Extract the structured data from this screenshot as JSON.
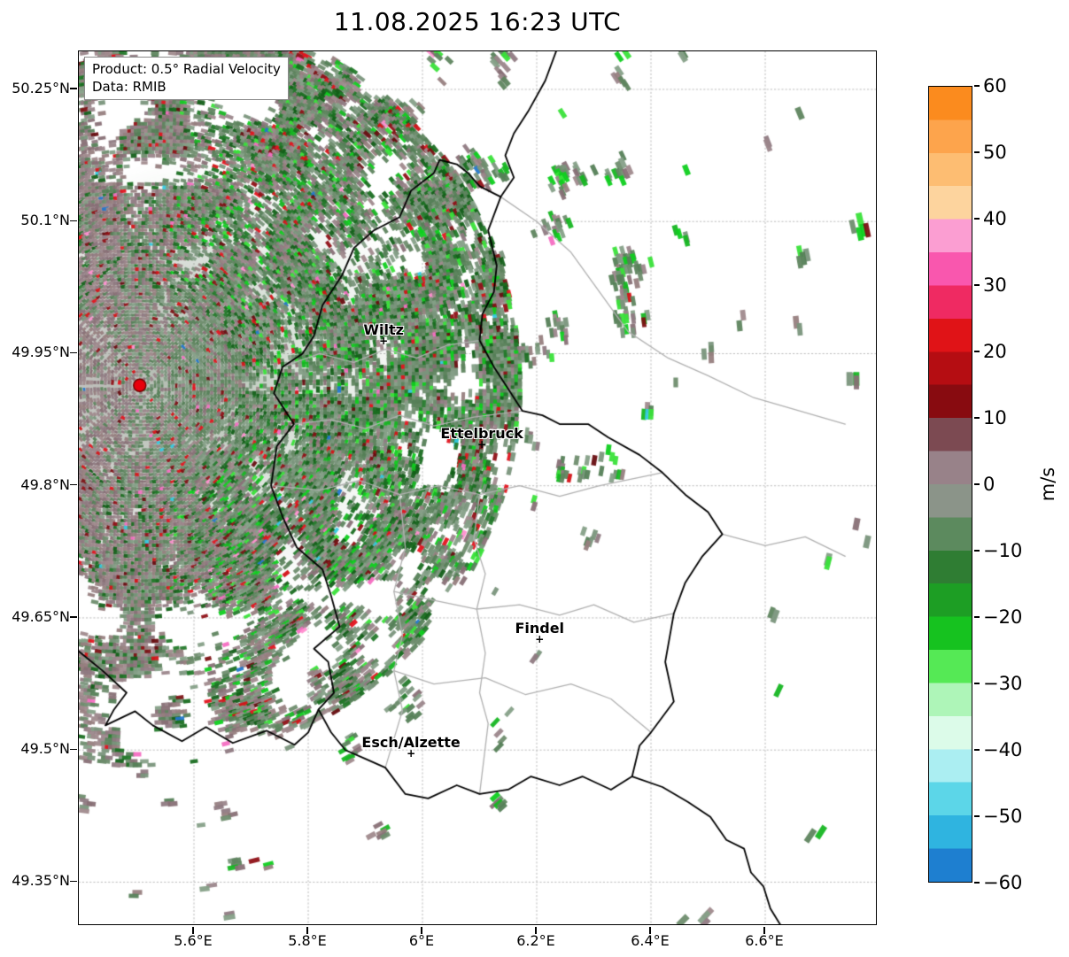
{
  "title": "11.08.2025 16:23 UTC",
  "annotation": {
    "product": "Product: 0.5° Radial Velocity",
    "source": "Data: RMIB"
  },
  "axes": {
    "lat_ticks": [
      "50.25°N",
      "50.1°N",
      "49.95°N",
      "49.8°N",
      "49.65°N",
      "49.5°N",
      "49.35°N"
    ],
    "lat_values": [
      50.25,
      50.1,
      49.95,
      49.8,
      49.65,
      49.5,
      49.35
    ],
    "lon_ticks": [
      "5.6°E",
      "5.8°E",
      "6°E",
      "6.2°E",
      "6.4°E",
      "6.6°E"
    ],
    "lon_values": [
      5.6,
      5.8,
      6.0,
      6.2,
      6.4,
      6.6
    ],
    "lon_range": [
      5.3984,
      6.7969
    ],
    "lat_range": [
      49.3002,
      50.2932
    ]
  },
  "map": {
    "city_marker_glyph": "+"
  },
  "cities": [
    {
      "name": "Wiltz",
      "lon": 5.932,
      "lat": 49.965
    },
    {
      "name": "Ettelbruck",
      "lon": 6.104,
      "lat": 49.847
    },
    {
      "name": "Findel",
      "lon": 6.205,
      "lat": 49.626
    },
    {
      "name": "Esch/Alzette",
      "lon": 5.98,
      "lat": 49.496
    }
  ],
  "radar_site": {
    "lon": 5.505,
    "lat": 49.914,
    "color": "#e8000b"
  },
  "colorbar": {
    "label": "m/s",
    "vmax": 60,
    "vmin": -60,
    "band_step": 5,
    "tick_labels": [
      "60",
      "50",
      "40",
      "30",
      "20",
      "10",
      "0",
      "−10",
      "−20",
      "−30",
      "−40",
      "−50",
      "−60"
    ],
    "tick_values": [
      60,
      50,
      40,
      30,
      20,
      10,
      0,
      -10,
      -20,
      -30,
      -40,
      -50,
      -60
    ],
    "band_colors_top_to_bottom": [
      "#fb8b1e",
      "#fda44c",
      "#fdbd72",
      "#fdd49e",
      "#fb9ed2",
      "#f957ae",
      "#ef2a62",
      "#e01317",
      "#b50d12",
      "#880b10",
      "#7c4a52",
      "#988289",
      "#8b9489",
      "#5c8a5e",
      "#2f7d33",
      "#1d9e24",
      "#16c21f",
      "#55e955",
      "#aef5b8",
      "#dcfbe9",
      "#abeef2",
      "#5cd6e8",
      "#2fb4e0",
      "#1e7fd0"
    ]
  },
  "echo_palette": {
    "muted_green": [
      "#6f8d6e",
      "#5f855f",
      "#7a957c",
      "#557f57",
      "#86a088"
    ],
    "muted_mauve": [
      "#97807f",
      "#8f7a82",
      "#a08a8d",
      "#887076",
      "#9b868b"
    ],
    "dark_green": [
      "#1a6e21",
      "#136019",
      "#247a2b"
    ],
    "bright_green": [
      "#16b622",
      "#0fcf1f",
      "#3ae23a"
    ],
    "dark_red": [
      "#7c1013",
      "#8f1016",
      "#670d10"
    ],
    "red": [
      "#d41216",
      "#e3141f"
    ],
    "pink": [
      "#f46ec2",
      "#ff8fd0"
    ],
    "cyan": [
      "#35c8e0"
    ],
    "blue": [
      "#2277cc"
    ]
  }
}
